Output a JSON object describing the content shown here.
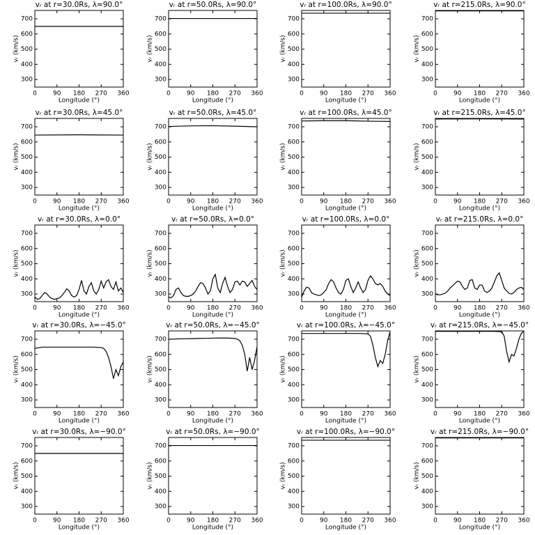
{
  "chart_data": [
    {
      "type": "line",
      "title": "vᵣ at r=30.0Rs, λ=90.0°",
      "x_label": "Longitude (°)",
      "y_label": "vᵣ (km/s)",
      "x": [
        0,
        360
      ],
      "values": [
        650,
        650
      ],
      "color": "#000000",
      "xlim": [
        0,
        360
      ],
      "ylim": [
        250,
        755
      ],
      "xticks": [
        0,
        90,
        180,
        270,
        360
      ],
      "yticks": [
        300,
        400,
        500,
        600,
        700
      ]
    },
    {
      "type": "line",
      "title": "vᵣ at r=50.0Rs, λ=90.0°",
      "x_label": "Longitude (°)",
      "y_label": "vᵣ (km/s)",
      "x": [
        0,
        360
      ],
      "values": [
        702,
        702
      ],
      "color": "#000000",
      "xlim": [
        0,
        360
      ],
      "ylim": [
        250,
        755
      ],
      "xticks": [
        0,
        90,
        180,
        270,
        360
      ],
      "yticks": [
        300,
        400,
        500,
        600,
        700
      ]
    },
    {
      "type": "line",
      "title": "vᵣ at r=100.0Rs, λ=90.0°",
      "x_label": "Longitude (°)",
      "y_label": "vᵣ (km/s)",
      "x": [
        0,
        360
      ],
      "values": [
        737,
        737
      ],
      "color": "#000000",
      "xlim": [
        0,
        360
      ],
      "ylim": [
        250,
        755
      ],
      "xticks": [
        0,
        90,
        180,
        270,
        360
      ],
      "yticks": [
        300,
        400,
        500,
        600,
        700
      ]
    },
    {
      "type": "line",
      "title": "vᵣ at r=215.0Rs, λ=90.0°",
      "x_label": "Longitude (°)",
      "y_label": "vᵣ (km/s)",
      "x": [
        0,
        360
      ],
      "values": [
        752,
        752
      ],
      "color": "#000000",
      "xlim": [
        0,
        360
      ],
      "ylim": [
        250,
        755
      ],
      "xticks": [
        0,
        90,
        180,
        270,
        360
      ],
      "yticks": [
        300,
        400,
        500,
        600,
        700
      ]
    },
    {
      "type": "line",
      "title": "vᵣ at r=30.0Rs, λ=45.0°",
      "x_label": "Longitude (°)",
      "y_label": "vᵣ (km/s)",
      "x": [
        0,
        180,
        360
      ],
      "values": [
        645,
        647,
        645
      ],
      "color": "#000000",
      "xlim": [
        0,
        360
      ],
      "ylim": [
        250,
        755
      ],
      "xticks": [
        0,
        90,
        180,
        270,
        360
      ],
      "yticks": [
        300,
        400,
        500,
        600,
        700
      ]
    },
    {
      "type": "line",
      "title": "vᵣ at r=50.0Rs, λ=45.0°",
      "x_label": "Longitude (°)",
      "y_label": "vᵣ (km/s)",
      "x": [
        0,
        90,
        180,
        270,
        360
      ],
      "values": [
        702,
        706,
        707,
        704,
        700
      ],
      "color": "#000000",
      "xlim": [
        0,
        360
      ],
      "ylim": [
        250,
        755
      ],
      "xticks": [
        0,
        90,
        180,
        270,
        360
      ],
      "yticks": [
        300,
        400,
        500,
        600,
        700
      ]
    },
    {
      "type": "line",
      "title": "vᵣ at r=100.0Rs, λ=45.0°",
      "x_label": "Longitude (°)",
      "y_label": "vᵣ (km/s)",
      "x": [
        0,
        90,
        180,
        270,
        360
      ],
      "values": [
        738,
        740,
        740,
        737,
        735
      ],
      "color": "#000000",
      "xlim": [
        0,
        360
      ],
      "ylim": [
        250,
        755
      ],
      "xticks": [
        0,
        90,
        180,
        270,
        360
      ],
      "yticks": [
        300,
        400,
        500,
        600,
        700
      ]
    },
    {
      "type": "line",
      "title": "vᵣ at r=215.0Rs, λ=45.0°",
      "x_label": "Longitude (°)",
      "y_label": "vᵣ (km/s)",
      "x": [
        0,
        180,
        360
      ],
      "values": [
        751,
        752,
        751
      ],
      "color": "#000000",
      "xlim": [
        0,
        360
      ],
      "ylim": [
        250,
        755
      ],
      "xticks": [
        0,
        90,
        180,
        270,
        360
      ],
      "yticks": [
        300,
        400,
        500,
        600,
        700
      ]
    },
    {
      "type": "line",
      "title": "vᵣ at r=30.0Rs, λ=0.0°",
      "x_label": "Longitude (°)",
      "y_label": "vᵣ (km/s)",
      "x": [
        0,
        10,
        20,
        30,
        40,
        50,
        60,
        70,
        80,
        90,
        100,
        110,
        120,
        130,
        140,
        150,
        160,
        170,
        180,
        190,
        200,
        210,
        220,
        230,
        240,
        250,
        260,
        270,
        280,
        290,
        300,
        310,
        320,
        330,
        340,
        350,
        360
      ],
      "values": [
        280,
        265,
        270,
        290,
        310,
        300,
        280,
        270,
        265,
        270,
        275,
        290,
        310,
        335,
        320,
        290,
        280,
        290,
        330,
        390,
        320,
        300,
        350,
        375,
        320,
        300,
        330,
        385,
        340,
        380,
        395,
        350,
        330,
        380,
        320,
        340,
        310
      ],
      "color": "#000000",
      "xlim": [
        0,
        360
      ],
      "ylim": [
        250,
        755
      ],
      "xticks": [
        0,
        90,
        180,
        270,
        360
      ],
      "yticks": [
        300,
        400,
        500,
        600,
        700
      ]
    },
    {
      "type": "line",
      "title": "vᵣ at r=50.0Rs, λ=0.0°",
      "x_label": "Longitude (°)",
      "y_label": "vᵣ (km/s)",
      "x": [
        0,
        10,
        20,
        30,
        40,
        50,
        60,
        70,
        80,
        90,
        100,
        110,
        120,
        130,
        140,
        150,
        160,
        170,
        180,
        190,
        200,
        210,
        220,
        230,
        240,
        250,
        260,
        270,
        280,
        290,
        300,
        310,
        320,
        330,
        340,
        350,
        360
      ],
      "values": [
        280,
        275,
        290,
        330,
        340,
        310,
        290,
        285,
        285,
        290,
        300,
        320,
        350,
        375,
        370,
        340,
        300,
        320,
        400,
        430,
        340,
        310,
        370,
        410,
        350,
        310,
        330,
        380,
        385,
        360,
        385,
        380,
        350,
        370,
        390,
        350,
        330
      ],
      "color": "#000000",
      "xlim": [
        0,
        360
      ],
      "ylim": [
        250,
        755
      ],
      "xticks": [
        0,
        90,
        180,
        270,
        360
      ],
      "yticks": [
        300,
        400,
        500,
        600,
        700
      ]
    },
    {
      "type": "line",
      "title": "vᵣ at r=100.0Rs, λ=0.0°",
      "x_label": "Longitude (°)",
      "y_label": "vᵣ (km/s)",
      "x": [
        0,
        10,
        20,
        30,
        40,
        50,
        60,
        70,
        80,
        90,
        100,
        110,
        120,
        130,
        140,
        150,
        160,
        170,
        180,
        190,
        200,
        210,
        220,
        230,
        240,
        250,
        260,
        270,
        280,
        290,
        300,
        310,
        320,
        330,
        340,
        350,
        360
      ],
      "values": [
        280,
        320,
        345,
        340,
        310,
        300,
        295,
        290,
        295,
        310,
        330,
        370,
        395,
        380,
        340,
        310,
        300,
        330,
        390,
        400,
        350,
        310,
        340,
        380,
        340,
        310,
        330,
        390,
        420,
        400,
        370,
        360,
        370,
        350,
        320,
        300,
        290
      ],
      "color": "#000000",
      "xlim": [
        0,
        360
      ],
      "ylim": [
        250,
        755
      ],
      "xticks": [
        0,
        90,
        180,
        270,
        360
      ],
      "yticks": [
        300,
        400,
        500,
        600,
        700
      ]
    },
    {
      "type": "line",
      "title": "vᵣ at r=215.0Rs, λ=0.0°",
      "x_label": "Longitude (°)",
      "y_label": "vᵣ (km/s)",
      "x": [
        0,
        10,
        20,
        30,
        40,
        50,
        60,
        70,
        80,
        90,
        100,
        110,
        120,
        130,
        140,
        150,
        160,
        170,
        180,
        190,
        200,
        210,
        220,
        230,
        240,
        250,
        260,
        270,
        280,
        290,
        300,
        310,
        320,
        330,
        340,
        350,
        360
      ],
      "values": [
        300,
        295,
        295,
        300,
        305,
        320,
        340,
        355,
        370,
        385,
        380,
        350,
        330,
        340,
        390,
        395,
        340,
        330,
        360,
        360,
        320,
        310,
        320,
        340,
        380,
        420,
        440,
        390,
        340,
        320,
        305,
        300,
        310,
        330,
        340,
        345,
        330
      ],
      "color": "#000000",
      "xlim": [
        0,
        360
      ],
      "ylim": [
        250,
        755
      ],
      "xticks": [
        0,
        90,
        180,
        270,
        360
      ],
      "yticks": [
        300,
        400,
        500,
        600,
        700
      ]
    },
    {
      "type": "line",
      "title": "vᵣ at r=30.0Rs, λ=−45.0°",
      "x_label": "Longitude (°)",
      "y_label": "vᵣ (km/s)",
      "x": [
        0,
        30,
        60,
        90,
        120,
        150,
        180,
        210,
        240,
        270,
        280,
        290,
        300,
        310,
        320,
        330,
        340,
        350,
        360
      ],
      "values": [
        640,
        648,
        648,
        648,
        648,
        648,
        648,
        648,
        648,
        645,
        640,
        620,
        580,
        520,
        440,
        500,
        460,
        520,
        550
      ],
      "color": "#000000",
      "xlim": [
        0,
        360
      ],
      "ylim": [
        250,
        755
      ],
      "xticks": [
        0,
        90,
        180,
        270,
        360
      ],
      "yticks": [
        300,
        400,
        500,
        600,
        700
      ]
    },
    {
      "type": "line",
      "title": "vᵣ at r=50.0Rs, λ=−45.0°",
      "x_label": "Longitude (°)",
      "y_label": "vᵣ (km/s)",
      "x": [
        0,
        30,
        60,
        90,
        120,
        150,
        180,
        210,
        240,
        270,
        280,
        290,
        300,
        310,
        320,
        330,
        340,
        350,
        360
      ],
      "values": [
        700,
        702,
        703,
        704,
        705,
        706,
        707,
        708,
        708,
        705,
        700,
        690,
        660,
        600,
        490,
        580,
        500,
        560,
        650
      ],
      "color": "#000000",
      "xlim": [
        0,
        360
      ],
      "ylim": [
        250,
        755
      ],
      "xticks": [
        0,
        90,
        180,
        270,
        360
      ],
      "yticks": [
        300,
        400,
        500,
        600,
        700
      ]
    },
    {
      "type": "line",
      "title": "vᵣ at r=100.0Rs, λ=−45.0°",
      "x_label": "Longitude (°)",
      "y_label": "vᵣ (km/s)",
      "x": [
        0,
        30,
        60,
        90,
        120,
        150,
        180,
        210,
        240,
        270,
        280,
        290,
        300,
        310,
        320,
        330,
        340,
        350,
        360
      ],
      "values": [
        738,
        738,
        738,
        738,
        738,
        738,
        738,
        738,
        738,
        735,
        720,
        660,
        580,
        520,
        560,
        540,
        600,
        690,
        750
      ],
      "color": "#000000",
      "xlim": [
        0,
        360
      ],
      "ylim": [
        250,
        755
      ],
      "xticks": [
        0,
        90,
        180,
        270,
        360
      ],
      "yticks": [
        300,
        400,
        500,
        600,
        700
      ]
    },
    {
      "type": "line",
      "title": "vᵣ at r=215.0Rs, λ=−45.0°",
      "x_label": "Longitude (°)",
      "y_label": "vᵣ (km/s)",
      "x": [
        0,
        30,
        60,
        90,
        120,
        150,
        180,
        210,
        240,
        270,
        280,
        290,
        300,
        310,
        320,
        330,
        340,
        350,
        360
      ],
      "values": [
        752,
        752,
        752,
        752,
        752,
        752,
        752,
        752,
        752,
        750,
        720,
        620,
        550,
        600,
        590,
        640,
        700,
        740,
        752
      ],
      "color": "#000000",
      "xlim": [
        0,
        360
      ],
      "ylim": [
        250,
        755
      ],
      "xticks": [
        0,
        90,
        180,
        270,
        360
      ],
      "yticks": [
        300,
        400,
        500,
        600,
        700
      ]
    },
    {
      "type": "line",
      "title": "vᵣ at r=30.0Rs, λ=−90.0°",
      "x_label": "Longitude (°)",
      "y_label": "vᵣ (km/s)",
      "x": [
        0,
        360
      ],
      "values": [
        650,
        650
      ],
      "color": "#000000",
      "xlim": [
        0,
        360
      ],
      "ylim": [
        250,
        755
      ],
      "xticks": [
        0,
        90,
        180,
        270,
        360
      ],
      "yticks": [
        300,
        400,
        500,
        600,
        700
      ]
    },
    {
      "type": "line",
      "title": "vᵣ at r=50.0Rs, λ=−90.0°",
      "x_label": "Longitude (°)",
      "y_label": "vᵣ (km/s)",
      "x": [
        0,
        360
      ],
      "values": [
        702,
        702
      ],
      "color": "#000000",
      "xlim": [
        0,
        360
      ],
      "ylim": [
        250,
        755
      ],
      "xticks": [
        0,
        90,
        180,
        270,
        360
      ],
      "yticks": [
        300,
        400,
        500,
        600,
        700
      ]
    },
    {
      "type": "line",
      "title": "vᵣ at r=100.0Rs, λ=−90.0°",
      "x_label": "Longitude (°)",
      "y_label": "vᵣ (km/s)",
      "x": [
        0,
        360
      ],
      "values": [
        737,
        737
      ],
      "color": "#000000",
      "xlim": [
        0,
        360
      ],
      "ylim": [
        250,
        755
      ],
      "xticks": [
        0,
        90,
        180,
        270,
        360
      ],
      "yticks": [
        300,
        400,
        500,
        600,
        700
      ]
    },
    {
      "type": "line",
      "title": "vᵣ at r=215.0Rs, λ=−90.0°",
      "x_label": "Longitude (°)",
      "y_label": "vᵣ (km/s)",
      "x": [
        0,
        360
      ],
      "values": [
        752,
        752
      ],
      "color": "#000000",
      "xlim": [
        0,
        360
      ],
      "ylim": [
        250,
        755
      ],
      "xticks": [
        0,
        90,
        180,
        270,
        360
      ],
      "yticks": [
        300,
        400,
        500,
        600,
        700
      ]
    }
  ]
}
